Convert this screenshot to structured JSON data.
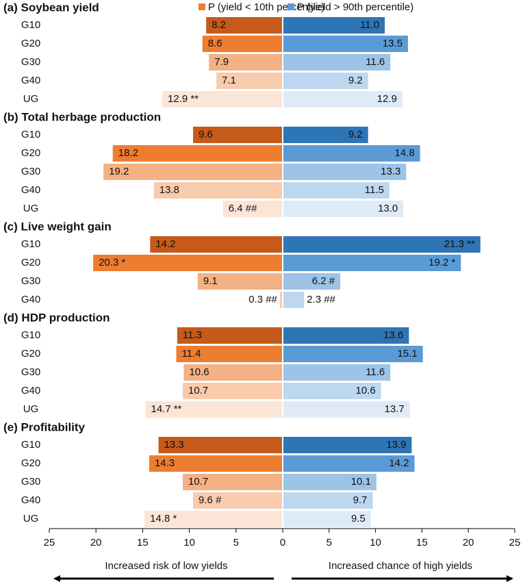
{
  "chart_data": {
    "type": "butterfly",
    "series": [
      {
        "name": "P (yield < 10th percentile)",
        "color": "#ed7d31",
        "side": "left"
      },
      {
        "name": "P (yield > 90th percentile)",
        "color": "#5b9bd5",
        "side": "right"
      }
    ],
    "category_colors": {
      "left": {
        "G10": "#c55a1a",
        "G20": "#ed7d31",
        "G30": "#f4b183",
        "G40": "#f8cbad",
        "UG": "#fbe5d6"
      },
      "right": {
        "G10": "#2e75b6",
        "G20": "#5b9bd5",
        "G30": "#9dc3e6",
        "G40": "#bdd7ee",
        "UG": "#deebf7"
      }
    },
    "xlim_left": [
      0,
      25
    ],
    "xticks_left": [
      5,
      10,
      15,
      20,
      25
    ],
    "xlim_right": [
      0,
      25
    ],
    "xticks_right": [
      0,
      5,
      10,
      15,
      20,
      25
    ],
    "arrow_labels": [
      "Increased risk of low yields",
      "Increased chance of high yields"
    ],
    "panels": [
      {
        "title": "(a) Soybean yield",
        "categories": [
          "G10",
          "G20",
          "G30",
          "G40",
          "UG"
        ],
        "left": [
          8.2,
          8.6,
          7.9,
          7.1,
          12.9
        ],
        "left_labels": [
          "8.2",
          "8.6",
          "7.9",
          "7.1",
          "12.9 **"
        ],
        "right": [
          11.0,
          13.5,
          11.6,
          9.2,
          12.9
        ],
        "right_labels": [
          "11.0",
          "13.5",
          "11.6",
          "9.2",
          "12.9"
        ]
      },
      {
        "title": "(b) Total herbage production",
        "categories": [
          "G10",
          "G20",
          "G30",
          "G40",
          "UG"
        ],
        "left": [
          9.6,
          18.2,
          19.2,
          13.8,
          6.4
        ],
        "left_labels": [
          "9.6",
          "18.2",
          "19.2",
          "13.8",
          "6.4 ##"
        ],
        "right": [
          9.2,
          14.8,
          13.3,
          11.5,
          13.0
        ],
        "right_labels": [
          "9.2",
          "14.8",
          "13.3",
          "11.5",
          "13.0"
        ]
      },
      {
        "title": "(c) Live weight gain",
        "categories": [
          "G10",
          "G20",
          "G30",
          "G40"
        ],
        "left": [
          14.2,
          20.3,
          9.1,
          0.3
        ],
        "left_labels": [
          "14.2",
          "20.3 *",
          "9.1",
          "0.3 ##"
        ],
        "right": [
          21.3,
          19.2,
          6.2,
          2.3
        ],
        "right_labels": [
          "21.3 **",
          "19.2 *",
          "6.2 #",
          "2.3 ##"
        ]
      },
      {
        "title": "(d) HDP production",
        "categories": [
          "G10",
          "G20",
          "G30",
          "G40",
          "UG"
        ],
        "left": [
          11.3,
          11.4,
          10.6,
          10.7,
          14.7
        ],
        "left_labels": [
          "11.3",
          "11.4",
          "10.6",
          "10.7",
          "14.7 **"
        ],
        "right": [
          13.6,
          15.1,
          11.6,
          10.6,
          13.7
        ],
        "right_labels": [
          "13.6",
          "15.1",
          "11.6",
          "10.6",
          "13.7"
        ]
      },
      {
        "title": "(e) Profitability",
        "categories": [
          "G10",
          "G20",
          "G30",
          "G40",
          "UG"
        ],
        "left": [
          13.3,
          14.3,
          10.7,
          9.6,
          14.8
        ],
        "left_labels": [
          "13.3",
          "14.3",
          "10.7",
          "9.6 #",
          "14.8 *"
        ],
        "right": [
          13.9,
          14.2,
          10.1,
          9.7,
          9.5
        ],
        "right_labels": [
          "13.9",
          "14.2",
          "10.1",
          "9.7",
          "9.5"
        ]
      }
    ]
  }
}
